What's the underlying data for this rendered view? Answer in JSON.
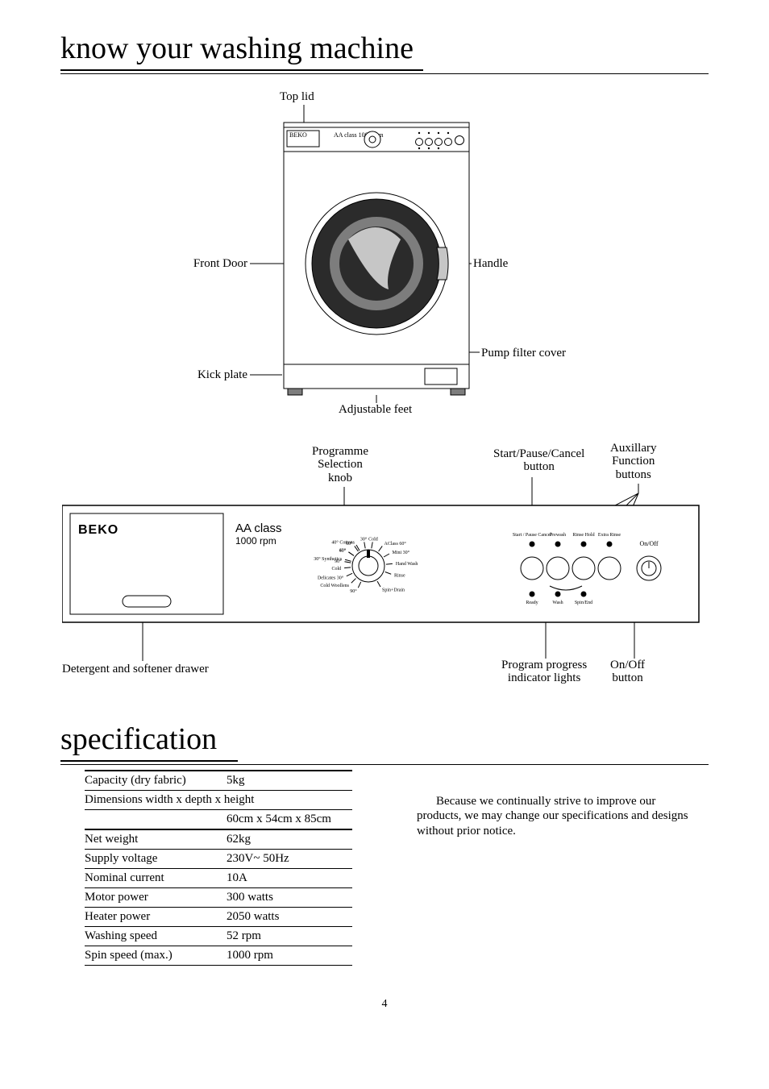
{
  "section1_title": "know your washing machine",
  "section2_title": "specification",
  "front_view": {
    "labels": {
      "top_lid": "Top lid",
      "front_door": "Front Door",
      "handle": "Handle",
      "kick_plate": "Kick plate",
      "pump_filter_cover": "Pump filter cover",
      "adjustable_feet": "Adjustable feet"
    },
    "panel_text": {
      "brand": "BEKO",
      "class_line": "AA class 1000 rpm"
    },
    "colors": {
      "body": "#ffffff",
      "outline": "#000000",
      "dark": "#2b2b2b",
      "mid": "#7d7d7d",
      "light": "#c6c6c6"
    }
  },
  "panel_view": {
    "labels": {
      "prog_knob": "Programme\nSelection\nknob",
      "start_pause": "Start/Pause/Cancel\nbutton",
      "aux_buttons": "Auxillary\nFunction\nbuttons",
      "detergent_drawer": "Detergent and softener drawer",
      "progress_lights": "Program progress\nindicator lights",
      "onoff": "On/Off\nbutton"
    },
    "panel_text": {
      "brand": "BEKO",
      "class_line1": "AA class",
      "class_line2": "1000 rpm"
    },
    "dial": {
      "items": [
        {
          "text": "90°",
          "angle": -80
        },
        {
          "text": "60°",
          "angle": -55
        },
        {
          "text": "40°  Cottons",
          "angle": -30
        },
        {
          "text": "30°",
          "angle": -10
        },
        {
          "text": "Cold",
          "angle": 10
        },
        {
          "text": "AClass 60°",
          "angle": 35
        },
        {
          "text": "Mini 30°",
          "angle": 60
        },
        {
          "text": "Hand Wash",
          "angle": 85
        },
        {
          "text": "Rinse",
          "angle": 110
        },
        {
          "text": "Spin+Drain",
          "angle": 150
        },
        {
          "text": "90°",
          "angle": 205
        },
        {
          "text": "Cold  Woollens",
          "angle": 225
        },
        {
          "text": "Delicates 30°",
          "angle": 245
        },
        {
          "text": "Cold",
          "angle": 265
        },
        {
          "text": "30°  Synthetics",
          "angle": 285
        },
        {
          "text": "40°",
          "angle": 305
        },
        {
          "text": "60°",
          "angle": 325
        }
      ]
    },
    "button_row": [
      "Start / Pause Cancel",
      "Prewash",
      "Rinse Hold",
      "Extra Rinse"
    ],
    "progress_row": [
      "Ready",
      "Wash",
      "Spin/End"
    ],
    "onoff_text": "On/Off"
  },
  "spec_table": {
    "rows": [
      {
        "k": "Capacity (dry fabric)",
        "v": "5kg",
        "style": "first"
      },
      {
        "k": "Dimensions width x depth x height",
        "v": "",
        "style": ""
      },
      {
        "k": "",
        "v": "60cm x 54cm x 85cm",
        "style": "heavy"
      },
      {
        "k": "Net weight",
        "v": "62kg",
        "style": ""
      },
      {
        "k": "Supply voltage",
        "v": "230V~ 50Hz",
        "style": ""
      },
      {
        "k": "Nominal current",
        "v": "10A",
        "style": ""
      },
      {
        "k": "Motor power",
        "v": "300 watts",
        "style": ""
      },
      {
        "k": "Heater power",
        "v": "2050 watts",
        "style": ""
      },
      {
        "k": "Washing speed",
        "v": "52 rpm",
        "style": ""
      },
      {
        "k": "Spin speed (max.)",
        "v": "1000 rpm",
        "style": ""
      }
    ]
  },
  "spec_note": "Because we continually strive to improve our products, we may change our specifications and designs without prior notice.",
  "page_number": "4"
}
